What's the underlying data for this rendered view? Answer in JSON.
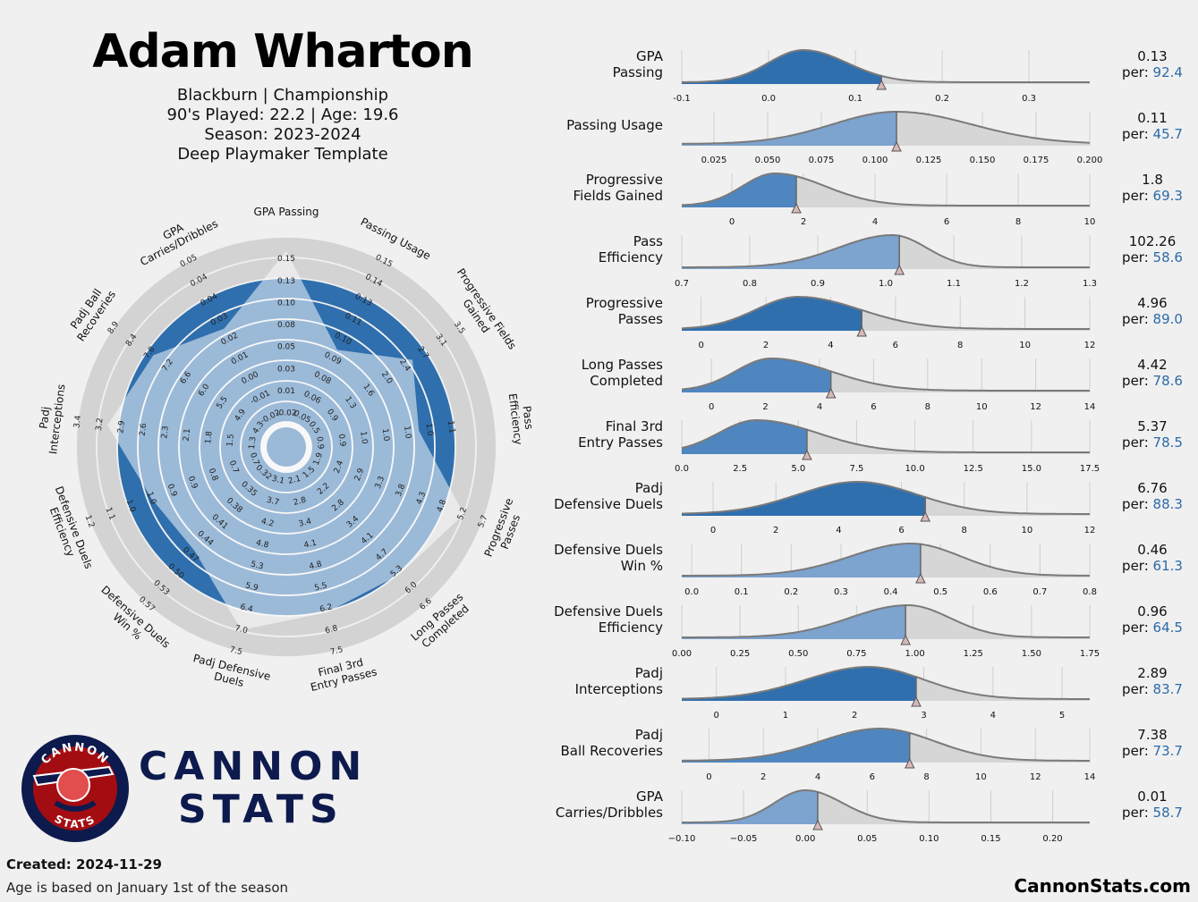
{
  "header": {
    "player_name": "Adam Wharton",
    "line1": "Blackburn | Championship",
    "line2": "90's Played: 22.2 | Age: 19.6",
    "line3": "Season: 2023-2024",
    "line4": "Deep Playmaker Template"
  },
  "footer": {
    "created": "Created: 2024-11-29",
    "age_note": "Age is based on January 1st of the season",
    "site": "CannonStats.com"
  },
  "brand": {
    "line1": "CANNON",
    "line2": "STATS",
    "badge_top": "CANNON",
    "badge_bottom": "STATS"
  },
  "colors": {
    "blue": "#2f6fae",
    "blue_light": "#7da3cf",
    "grey_fill": "#d6d6d6",
    "grey_line": "#7a7a7a",
    "ring_grey": "#d3d3d3",
    "navy": "#0d1a4d",
    "badge_red": "#a30d12",
    "per_blue": "#2c6aa8"
  },
  "chart_data": [
    {
      "type": "radar",
      "axes": [
        {
          "label": "GPA Passing",
          "ticks": [
            "-0.02",
            "0.01",
            "0.03",
            "0.05",
            "0.08",
            "0.10",
            "0.13",
            "0.15"
          ],
          "percentile": 92.4
        },
        {
          "label": "Passing Usage",
          "ticks": [
            "0.05",
            "0.06",
            "0.08",
            "0.09",
            "0.10",
            "0.11",
            "0.13",
            "0.14",
            "0.15"
          ],
          "percentile": 45.7
        },
        {
          "label": "Progressive Fields Gained",
          "ticks": [
            "0.5",
            "0.9",
            "1.3",
            "1.6",
            "2.0",
            "2.4",
            "2.7",
            "3.1",
            "3.5"
          ],
          "percentile": 69.3
        },
        {
          "label": "Pass Efficiency",
          "ticks": [
            "0.9",
            "0.9",
            "1.0",
            "1.0",
            "1.0",
            "1.0",
            "1.1"
          ],
          "percentile": 58.6
        },
        {
          "label": "Progressive Passes",
          "ticks": [
            "1.9",
            "2.4",
            "2.9",
            "3.3",
            "3.8",
            "4.3",
            "4.8",
            "5.2",
            "5.7"
          ],
          "percentile": 89.0
        },
        {
          "label": "Long Passes Completed",
          "ticks": [
            "1.5",
            "2.2",
            "2.8",
            "3.4",
            "4.1",
            "4.7",
            "5.3",
            "6.0",
            "6.6"
          ],
          "percentile": 78.6
        },
        {
          "label": "Final 3rd Entry Passes",
          "ticks": [
            "2.1",
            "2.8",
            "3.4",
            "4.1",
            "4.8",
            "5.5",
            "6.2",
            "6.8",
            "7.5"
          ],
          "percentile": 78.5
        },
        {
          "label": "Padj Defensive Duels",
          "ticks": [
            "3.1",
            "3.7",
            "4.2",
            "4.8",
            "5.3",
            "5.9",
            "6.4",
            "7.0",
            "7.5"
          ],
          "percentile": 88.3
        },
        {
          "label": "Defensive Duels Win %",
          "ticks": [
            "0.32",
            "0.35",
            "0.38",
            "0.41",
            "0.44",
            "0.47",
            "0.50",
            "0.53",
            "0.57"
          ],
          "percentile": 61.3
        },
        {
          "label": "Defensive Duels Efficiency",
          "ticks": [
            "0.7",
            "0.7",
            "0.8",
            "0.9",
            "0.9",
            "1.0",
            "1.0",
            "1.1",
            "1.2"
          ],
          "percentile": 64.5
        },
        {
          "label": "Padj Interceptions",
          "ticks": [
            "1.3",
            "1.5",
            "1.8",
            "2.1",
            "2.3",
            "2.6",
            "2.9",
            "3.2",
            "3.4"
          ],
          "percentile": 83.7
        },
        {
          "label": "Padj Ball Recoveries",
          "ticks": [
            "4.3",
            "4.9",
            "5.5",
            "6.0",
            "6.6",
            "7.2",
            "7.8",
            "8.4",
            "8.9"
          ],
          "percentile": 73.7
        },
        {
          "label": "GPA Carries/Dribbles",
          "ticks": [
            "-0.02",
            "-0.01",
            "0.00",
            "0.01",
            "0.02",
            "0.03",
            "0.04",
            "0.04",
            "0.05"
          ],
          "percentile": 58.7
        }
      ]
    },
    {
      "type": "area",
      "panels": [
        {
          "label": [
            "GPA",
            "Passing"
          ],
          "value": "0.13",
          "per": "92.4",
          "v": 0.13,
          "xmin": -0.1,
          "xmax": 0.37,
          "ticks": [
            -0.1,
            0.0,
            0.1,
            0.2,
            0.3
          ],
          "tick_labels": [
            "-0.1",
            "0.0",
            "0.1",
            "0.2",
            "0.3"
          ],
          "peak": 0.04,
          "sl": 0.04,
          "sr": 0.05,
          "shade": "dark"
        },
        {
          "label": [
            "Passing Usage"
          ],
          "value": "0.11",
          "per": "45.7",
          "v": 0.11,
          "xmin": 0.01,
          "xmax": 0.2,
          "ticks": [
            0.025,
            0.05,
            0.075,
            0.1,
            0.125,
            0.15,
            0.175,
            0.2
          ],
          "tick_labels": [
            "0.025",
            "0.050",
            "0.075",
            "0.100",
            "0.125",
            "0.150",
            "0.175",
            "0.200"
          ],
          "peak": 0.11,
          "sl": 0.03,
          "sr": 0.035,
          "shade": "light"
        },
        {
          "label": [
            "Progressive",
            "Fields Gained"
          ],
          "value": "1.8",
          "per": "69.3",
          "v": 1.8,
          "xmin": -1.4,
          "xmax": 10,
          "ticks": [
            0,
            2,
            4,
            6,
            8,
            10
          ],
          "tick_labels": [
            "0",
            "2",
            "4",
            "6",
            "8",
            "10"
          ],
          "peak": 1.2,
          "sl": 0.9,
          "sr": 1.4,
          "shade": "mid"
        },
        {
          "label": [
            "Pass",
            "Efficiency"
          ],
          "value": "102.26",
          "per": "58.6",
          "v": 1.02,
          "xmin": 0.7,
          "xmax": 1.3,
          "ticks": [
            0.7,
            0.8,
            0.9,
            1.0,
            1.1,
            1.2,
            1.3
          ],
          "tick_labels": [
            "0.7",
            "0.8",
            "0.9",
            "1.0",
            "1.1",
            "1.2",
            "1.3"
          ],
          "peak": 1.01,
          "sl": 0.08,
          "sr": 0.05,
          "shade": "light"
        },
        {
          "label": [
            "Progressive",
            "Passes"
          ],
          "value": "4.96",
          "per": "89.0",
          "v": 4.96,
          "xmin": -0.6,
          "xmax": 12,
          "ticks": [
            0,
            2,
            4,
            6,
            8,
            10,
            12
          ],
          "tick_labels": [
            "0",
            "2",
            "4",
            "6",
            "8",
            "10",
            "12"
          ],
          "peak": 3.0,
          "sl": 1.3,
          "sr": 1.9,
          "shade": "dark"
        },
        {
          "label": [
            "Long Passes",
            "Completed"
          ],
          "value": "4.42",
          "per": "78.6",
          "v": 4.42,
          "xmin": -1.1,
          "xmax": 14,
          "ticks": [
            0,
            2,
            4,
            6,
            8,
            10,
            12,
            14
          ],
          "tick_labels": [
            "0",
            "2",
            "4",
            "6",
            "8",
            "10",
            "12",
            "14"
          ],
          "peak": 2.2,
          "sl": 1.3,
          "sr": 2.2,
          "shade": "mid"
        },
        {
          "label": [
            "Final 3rd",
            "Entry Passes"
          ],
          "value": "5.37",
          "per": "78.5",
          "v": 5.37,
          "xmin": 0,
          "xmax": 17.5,
          "ticks": [
            0,
            2.5,
            5,
            7.5,
            10,
            12.5,
            15,
            17.5
          ],
          "tick_labels": [
            "0.0",
            "2.5",
            "5.0",
            "7.5",
            "10.0",
            "12.5",
            "15.0",
            "17.5"
          ],
          "peak": 3.2,
          "sl": 1.6,
          "sr": 2.6,
          "shade": "mid"
        },
        {
          "label": [
            "Padj",
            "Defensive Duels"
          ],
          "value": "6.76",
          "per": "88.3",
          "v": 6.76,
          "xmin": -1,
          "xmax": 12,
          "ticks": [
            0,
            2,
            4,
            6,
            8,
            10,
            12
          ],
          "tick_labels": [
            "0",
            "2",
            "4",
            "6",
            "8",
            "10",
            "12"
          ],
          "peak": 4.6,
          "sl": 1.9,
          "sr": 1.9,
          "shade": "dark"
        },
        {
          "label": [
            "Defensive Duels",
            "Win %"
          ],
          "value": "0.46",
          "per": "61.3",
          "v": 0.46,
          "xmin": -0.02,
          "xmax": 0.8,
          "ticks": [
            0.0,
            0.1,
            0.2,
            0.3,
            0.4,
            0.5,
            0.6,
            0.7,
            0.8
          ],
          "tick_labels": [
            "0.0",
            "0.1",
            "0.2",
            "0.3",
            "0.4",
            "0.5",
            "0.6",
            "0.7",
            "0.8"
          ],
          "peak": 0.44,
          "sl": 0.12,
          "sr": 0.1,
          "shade": "light"
        },
        {
          "label": [
            "Defensive Duels",
            "Efficiency"
          ],
          "value": "0.96",
          "per": "64.5",
          "v": 0.96,
          "xmin": 0,
          "xmax": 1.75,
          "ticks": [
            0,
            0.25,
            0.5,
            0.75,
            1.0,
            1.25,
            1.5,
            1.75
          ],
          "tick_labels": [
            "0.00",
            "0.25",
            "0.50",
            "0.75",
            "1.00",
            "1.25",
            "1.50",
            "1.75"
          ],
          "peak": 0.97,
          "sl": 0.25,
          "sr": 0.18,
          "shade": "light"
        },
        {
          "label": [
            "Padj",
            "Interceptions"
          ],
          "value": "2.89",
          "per": "83.7",
          "v": 2.89,
          "xmin": -0.5,
          "xmax": 5.4,
          "ticks": [
            0,
            1,
            2,
            3,
            4,
            5
          ],
          "tick_labels": [
            "0",
            "1",
            "2",
            "3",
            "4",
            "5"
          ],
          "peak": 2.2,
          "sl": 0.9,
          "sr": 0.8,
          "shade": "dark"
        },
        {
          "label": [
            "Padj",
            "Ball Recoveries"
          ],
          "value": "7.38",
          "per": "73.7",
          "v": 7.38,
          "xmin": -1,
          "xmax": 14,
          "ticks": [
            0,
            2,
            4,
            6,
            8,
            10,
            12,
            14
          ],
          "tick_labels": [
            "0",
            "2",
            "4",
            "6",
            "8",
            "10",
            "12",
            "14"
          ],
          "peak": 6.3,
          "sl": 2.2,
          "sr": 2.0,
          "shade": "mid"
        },
        {
          "label": [
            "GPA",
            "Carries/Dribbles"
          ],
          "value": "0.01",
          "per": "58.7",
          "v": 0.01,
          "xmin": -0.1,
          "xmax": 0.23,
          "ticks": [
            -0.1,
            -0.05,
            0.0,
            0.05,
            0.1,
            0.15,
            0.2
          ],
          "tick_labels": [
            "−0.10",
            "−0.05",
            "0.00",
            "0.05",
            "0.10",
            "0.15",
            "0.20"
          ],
          "peak": 0.0,
          "sl": 0.025,
          "sr": 0.03,
          "shade": "light"
        }
      ]
    }
  ]
}
